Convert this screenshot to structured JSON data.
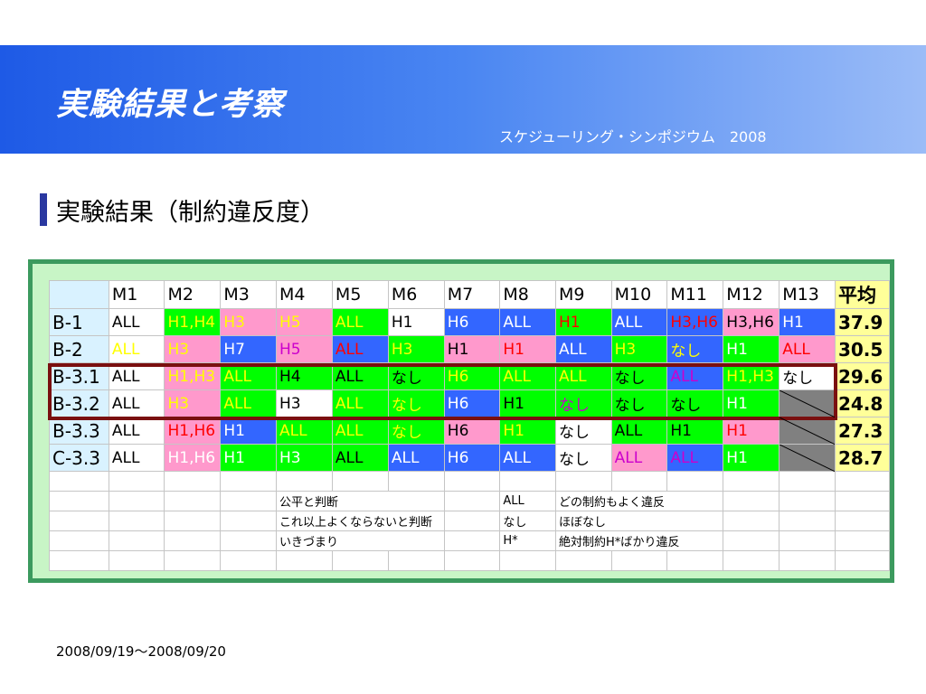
{
  "header": {
    "title": "実験結果と考察",
    "subtitle": "スケジューリング・シンポジウム　2008"
  },
  "section": {
    "heading": "実験結果（制約違反度）"
  },
  "table": {
    "columns": [
      "",
      "M1",
      "M2",
      "M3",
      "M4",
      "M5",
      "M6",
      "M7",
      "M8",
      "M9",
      "M10",
      "M11",
      "M12",
      "M13",
      "平均"
    ],
    "rows": [
      {
        "label": "B-1",
        "cells": [
          {
            "text": "ALL",
            "bg": "white",
            "fg": "black"
          },
          {
            "text": "H1,H4",
            "bg": "green",
            "fg": "yellow"
          },
          {
            "text": "H3",
            "bg": "pink",
            "fg": "yellow"
          },
          {
            "text": "H5",
            "bg": "pink",
            "fg": "yellow"
          },
          {
            "text": "ALL",
            "bg": "green",
            "fg": "yellow"
          },
          {
            "text": "H1",
            "bg": "white",
            "fg": "black"
          },
          {
            "text": "H6",
            "bg": "blue",
            "fg": "white"
          },
          {
            "text": "ALL",
            "bg": "blue",
            "fg": "white"
          },
          {
            "text": "H1",
            "bg": "green",
            "fg": "red"
          },
          {
            "text": "ALL",
            "bg": "blue",
            "fg": "white"
          },
          {
            "text": "H3,H6",
            "bg": "blue",
            "fg": "red"
          },
          {
            "text": "H3,H6",
            "bg": "pink",
            "fg": "black"
          },
          {
            "text": "H1",
            "bg": "blue",
            "fg": "white"
          }
        ],
        "avg": "37.9"
      },
      {
        "label": "B-2",
        "cells": [
          {
            "text": "ALL",
            "bg": "white",
            "fg": "yellow"
          },
          {
            "text": "H3",
            "bg": "pink",
            "fg": "yellow"
          },
          {
            "text": "H7",
            "bg": "blue",
            "fg": "white"
          },
          {
            "text": "H5",
            "bg": "pink",
            "fg": "magenta"
          },
          {
            "text": "ALL",
            "bg": "blue",
            "fg": "red"
          },
          {
            "text": "H3",
            "bg": "green",
            "fg": "yellow"
          },
          {
            "text": "H1",
            "bg": "pink",
            "fg": "black"
          },
          {
            "text": "H1",
            "bg": "pink",
            "fg": "red"
          },
          {
            "text": "ALL",
            "bg": "blue",
            "fg": "white"
          },
          {
            "text": "H3",
            "bg": "green",
            "fg": "yellow"
          },
          {
            "text": "なし",
            "bg": "blue",
            "fg": "yellow"
          },
          {
            "text": "H1",
            "bg": "green",
            "fg": "white"
          },
          {
            "text": "ALL",
            "bg": "pink",
            "fg": "red"
          }
        ],
        "avg": "30.5"
      },
      {
        "label": "B-3.1",
        "cells": [
          {
            "text": "ALL",
            "bg": "white",
            "fg": "black"
          },
          {
            "text": "H1,H3",
            "bg": "pink",
            "fg": "yellow"
          },
          {
            "text": "ALL",
            "bg": "green",
            "fg": "yellow"
          },
          {
            "text": "H4",
            "bg": "green",
            "fg": "black"
          },
          {
            "text": "ALL",
            "bg": "green",
            "fg": "black"
          },
          {
            "text": "なし",
            "bg": "green",
            "fg": "black"
          },
          {
            "text": "H6",
            "bg": "green",
            "fg": "yellow"
          },
          {
            "text": "ALL",
            "bg": "green",
            "fg": "yellow"
          },
          {
            "text": "ALL",
            "bg": "green",
            "fg": "yellow"
          },
          {
            "text": "なし",
            "bg": "green",
            "fg": "black"
          },
          {
            "text": "ALL",
            "bg": "blue",
            "fg": "magenta"
          },
          {
            "text": "H1,H3",
            "bg": "green",
            "fg": "yellow"
          },
          {
            "text": "なし",
            "bg": "white",
            "fg": "black"
          }
        ],
        "avg": "29.6"
      },
      {
        "label": "B-3.2",
        "cells": [
          {
            "text": "ALL",
            "bg": "white",
            "fg": "black"
          },
          {
            "text": "H3",
            "bg": "pink",
            "fg": "yellow"
          },
          {
            "text": "ALL",
            "bg": "green",
            "fg": "yellow"
          },
          {
            "text": "H3",
            "bg": "white",
            "fg": "black"
          },
          {
            "text": "ALL",
            "bg": "green",
            "fg": "yellow"
          },
          {
            "text": "なし",
            "bg": "green",
            "fg": "yellow"
          },
          {
            "text": "H6",
            "bg": "blue",
            "fg": "white"
          },
          {
            "text": "H1",
            "bg": "green",
            "fg": "black"
          },
          {
            "text": "なし",
            "bg": "green",
            "fg": "magenta"
          },
          {
            "text": "なし",
            "bg": "green",
            "fg": "black"
          },
          {
            "text": "なし",
            "bg": "green",
            "fg": "black"
          },
          {
            "text": "H1",
            "bg": "green",
            "fg": "white"
          },
          {
            "text": "",
            "bg": "gray",
            "fg": "black"
          }
        ],
        "avg": "24.8"
      },
      {
        "label": "B-3.3",
        "cells": [
          {
            "text": "ALL",
            "bg": "white",
            "fg": "black"
          },
          {
            "text": "H1,H6",
            "bg": "pink",
            "fg": "red"
          },
          {
            "text": "H1",
            "bg": "blue",
            "fg": "white"
          },
          {
            "text": "ALL",
            "bg": "green",
            "fg": "yellow"
          },
          {
            "text": "ALL",
            "bg": "green",
            "fg": "yellow"
          },
          {
            "text": "なし",
            "bg": "green",
            "fg": "yellow"
          },
          {
            "text": "H6",
            "bg": "pink",
            "fg": "black"
          },
          {
            "text": "H1",
            "bg": "green",
            "fg": "yellow"
          },
          {
            "text": "なし",
            "bg": "white",
            "fg": "black"
          },
          {
            "text": "ALL",
            "bg": "green",
            "fg": "black"
          },
          {
            "text": "H1",
            "bg": "green",
            "fg": "black"
          },
          {
            "text": "H1",
            "bg": "pink",
            "fg": "red"
          },
          {
            "text": "",
            "bg": "gray",
            "fg": "black"
          }
        ],
        "avg": "27.3"
      },
      {
        "label": "C-3.3",
        "cells": [
          {
            "text": "ALL",
            "bg": "white",
            "fg": "black"
          },
          {
            "text": "H1,H6",
            "bg": "pink",
            "fg": "white"
          },
          {
            "text": "H1",
            "bg": "green",
            "fg": "white"
          },
          {
            "text": "H3",
            "bg": "green",
            "fg": "white"
          },
          {
            "text": "ALL",
            "bg": "green",
            "fg": "black"
          },
          {
            "text": "ALL",
            "bg": "blue",
            "fg": "white"
          },
          {
            "text": "H6",
            "bg": "blue",
            "fg": "white"
          },
          {
            "text": "ALL",
            "bg": "blue",
            "fg": "white"
          },
          {
            "text": "なし",
            "bg": "white",
            "fg": "black"
          },
          {
            "text": "ALL",
            "bg": "pink",
            "fg": "magenta"
          },
          {
            "text": "ALL",
            "bg": "blue",
            "fg": "magenta"
          },
          {
            "text": "H1",
            "bg": "green",
            "fg": "white"
          },
          {
            "text": "",
            "bg": "gray",
            "fg": "black"
          }
        ],
        "avg": "28.7"
      }
    ]
  },
  "legend": {
    "colors": [
      {
        "swatch": "pink",
        "label": "公平と判断"
      },
      {
        "swatch": "green",
        "label": "これ以上よくならないと判断"
      },
      {
        "swatch": "blue",
        "label": "いきづまり"
      }
    ],
    "codes": [
      {
        "code": "ALL",
        "meaning": "どの制約もよく違反"
      },
      {
        "code": "なし",
        "meaning": "ほぼなし"
      },
      {
        "code": "H*",
        "meaning": "絶対制約H*ばかり違反"
      }
    ]
  },
  "colors": {
    "pink": "#ff99cc",
    "green": "#00ff00",
    "blue": "#3366ff",
    "gray": "#808080",
    "average_bg": "#ffff99",
    "highlight_border": "#7a1010",
    "panel_bg": "#c8f5c6",
    "panel_border": "#3c9a5e",
    "header_bg": "#1e5ae6"
  },
  "footer": {
    "date": "2008/09/19～2008/09/20"
  }
}
